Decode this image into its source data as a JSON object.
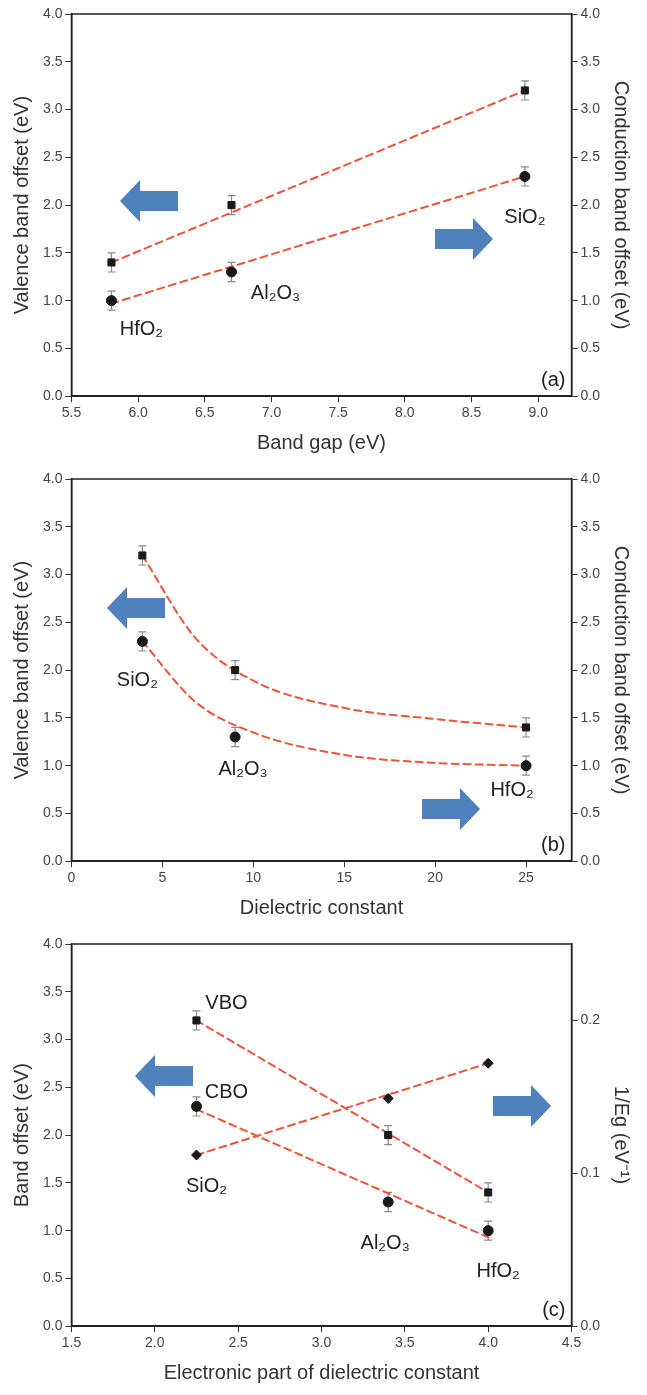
{
  "chart_data": [
    {
      "type": "scatter",
      "xlabel": "Band gap (eV)",
      "ylabel": "Valence band offset (eV)",
      "y2label": "Conduction band offset (eV)",
      "x": [
        5.8,
        6.7,
        8.9
      ],
      "series": [
        {
          "type": "scatter",
          "color": "#1a1a1a",
          "marker": "square",
          "values": [
            1.4,
            2.0,
            3.2
          ],
          "errors": [
            0.1,
            0.1,
            0.1
          ]
        },
        {
          "type": "scatter",
          "color": "#1a1a1a",
          "marker": "circle",
          "axis": "y2",
          "values": [
            1.0,
            1.3,
            2.3
          ],
          "errors": [
            0.1,
            0.1,
            0.1
          ]
        },
        {
          "type": "line",
          "color": "#f0533a",
          "marker": "none",
          "line_style": "dashed",
          "x": [
            5.8,
            8.9
          ],
          "values": [
            1.4,
            3.2
          ]
        },
        {
          "type": "line",
          "color": "#f0533a",
          "marker": "none",
          "line_style": "dashed",
          "x": [
            5.8,
            8.9
          ],
          "values": [
            0.97,
            2.3
          ]
        }
      ],
      "xlim": [
        5.5,
        9.25
      ],
      "xticks": [
        {
          "value": 5.5,
          "label": "5.5"
        },
        {
          "value": 6,
          "label": "6.0"
        },
        {
          "value": 6.5,
          "label": "6.5"
        },
        {
          "value": 7,
          "label": "7.0"
        },
        {
          "value": 7.5,
          "label": "7.5"
        },
        {
          "value": 8,
          "label": "8.0"
        },
        {
          "value": 8.5,
          "label": "8.5"
        },
        {
          "value": 9,
          "label": "9.0"
        }
      ],
      "ylim": [
        0,
        4
      ],
      "yticks": [
        {
          "value": 0,
          "label": "0.0"
        },
        {
          "value": 0.5,
          "label": "0.5"
        },
        {
          "value": 1,
          "label": "1.0"
        },
        {
          "value": 1.5,
          "label": "1.5"
        },
        {
          "value": 2,
          "label": "2.0"
        },
        {
          "value": 2.5,
          "label": "2.5"
        },
        {
          "value": 3,
          "label": "3.0"
        },
        {
          "value": 3.5,
          "label": "3.5"
        },
        {
          "value": 4,
          "label": "4.0"
        }
      ],
      "y2lim": [
        0,
        4
      ],
      "y2ticks": [
        {
          "value": 0,
          "label": "0.0"
        },
        {
          "value": 0.5,
          "label": "0.5"
        },
        {
          "value": 1,
          "label": "1.0"
        },
        {
          "value": 1.5,
          "label": "1.5"
        },
        {
          "value": 2,
          "label": "2.0"
        },
        {
          "value": 2.5,
          "label": "2.5"
        },
        {
          "value": 3,
          "label": "3.0"
        },
        {
          "value": 3.5,
          "label": "3.5"
        },
        {
          "value": 4,
          "label": "4.0"
        }
      ],
      "annotations": [
        {
          "text": "HfO₂",
          "x": 5.8,
          "y": 1.0
        },
        {
          "text": "Al₂O₃",
          "x": 6.7,
          "y": 1.3
        },
        {
          "text": "SiO₂",
          "x": 8.9,
          "y": 2.3
        },
        "(a)"
      ]
    },
    {
      "type": "scatter",
      "xlabel": "Dielectric constant",
      "ylabel": "Valence band offset (eV)",
      "y2label": "Conduction band offset (eV)",
      "x": [
        3.9,
        9,
        25
      ],
      "series": [
        {
          "type": "scatter",
          "color": "#1a1a1a",
          "marker": "square",
          "values": [
            3.2,
            2.0,
            1.4
          ],
          "errors": [
            0.1,
            0.1,
            0.1
          ]
        },
        {
          "type": "scatter",
          "color": "#1a1a1a",
          "marker": "circle",
          "axis": "y2",
          "values": [
            2.3,
            1.3,
            1.0
          ],
          "errors": [
            0.1,
            0.1,
            0.1
          ]
        },
        {
          "type": "line",
          "color": "#f0533a",
          "marker": "none",
          "line_style": "dashed",
          "x": [
            3.9,
            6.8,
            10.1,
            15.1,
            19.9,
            25
          ],
          "values": [
            3.2,
            2.34,
            1.88,
            1.6,
            1.49,
            1.4
          ]
        },
        {
          "type": "line",
          "color": "#f0533a",
          "marker": "none",
          "line_style": "dashed",
          "x": [
            3.9,
            6.8,
            10.1,
            15.1,
            19.9,
            25
          ],
          "values": [
            2.3,
            1.67,
            1.34,
            1.11,
            1.03,
            1.0
          ]
        }
      ],
      "xlim": [
        0,
        27.5
      ],
      "xticks": [
        0,
        5,
        10,
        15,
        20,
        25
      ],
      "ylim": [
        0,
        4
      ],
      "yticks": [
        {
          "value": 0,
          "label": "0.0"
        },
        {
          "value": 0.5,
          "label": "0.5"
        },
        {
          "value": 1,
          "label": "1.0"
        },
        {
          "value": 1.5,
          "label": "1.5"
        },
        {
          "value": 2,
          "label": "2.0"
        },
        {
          "value": 2.5,
          "label": "2.5"
        },
        {
          "value": 3,
          "label": "3.0"
        },
        {
          "value": 3.5,
          "label": "3.5"
        },
        {
          "value": 4,
          "label": "4.0"
        }
      ],
      "y2lim": [
        0,
        4
      ],
      "y2ticks": [
        {
          "value": 0,
          "label": "0.0"
        },
        {
          "value": 0.5,
          "label": "0.5"
        },
        {
          "value": 1,
          "label": "1.0"
        },
        {
          "value": 1.5,
          "label": "1.5"
        },
        {
          "value": 2,
          "label": "2.0"
        },
        {
          "value": 2.5,
          "label": "2.5"
        },
        {
          "value": 3,
          "label": "3.0"
        },
        {
          "value": 3.5,
          "label": "3.5"
        },
        {
          "value": 4,
          "label": "4.0"
        }
      ],
      "annotations": [
        {
          "text": "SiO₂",
          "x": 3.9,
          "y": 2.3
        },
        {
          "text": "Al₂O₃",
          "x": 9,
          "y": 1.3
        },
        {
          "text": "HfO₂",
          "x": 25,
          "y": 1.0
        },
        "(b)"
      ]
    },
    {
      "type": "scatter",
      "xlabel": "Electronic part of dielectric constant",
      "ylabel": "Band offset (eV)",
      "y2label": "1/Eg (eV⁻¹)",
      "x": [
        2.25,
        3.4,
        4.0
      ],
      "series": [
        {
          "type": "scatter",
          "color": "#1a1a1a",
          "marker": "square",
          "values": [
            3.2,
            2.0,
            1.4
          ],
          "errors": [
            0.1,
            0.1,
            0.1
          ]
        },
        {
          "type": "scatter",
          "color": "#1a1a1a",
          "marker": "circle",
          "values": [
            2.3,
            1.3,
            1.0
          ],
          "errors": [
            0.1,
            0.1,
            0.1
          ]
        },
        {
          "type": "scatter",
          "color": "#1a1a1a",
          "marker": "diamond",
          "axis": "y2",
          "values": [
            0.112,
            0.149,
            0.172
          ]
        },
        {
          "type": "line",
          "color": "#f0533a",
          "marker": "none",
          "line_style": "dashed",
          "x": [
            2.25,
            4.0
          ],
          "values": [
            3.2,
            1.4
          ]
        },
        {
          "type": "line",
          "color": "#f0533a",
          "marker": "none",
          "line_style": "dashed",
          "x": [
            2.25,
            4.0
          ],
          "values": [
            2.27,
            0.93
          ]
        },
        {
          "type": "line",
          "color": "#f0533a",
          "marker": "none",
          "line_style": "dashed",
          "axis": "y2",
          "x": [
            2.25,
            4.0
          ],
          "values": [
            0.112,
            0.172
          ]
        }
      ],
      "xlim": [
        1.5,
        4.5
      ],
      "xticks": [
        {
          "value": 1.5,
          "label": "1.5"
        },
        {
          "value": 2,
          "label": "2.0"
        },
        {
          "value": 2.5,
          "label": "2.5"
        },
        {
          "value": 3,
          "label": "3.0"
        },
        {
          "value": 3.5,
          "label": "3.5"
        },
        {
          "value": 4,
          "label": "4.0"
        },
        {
          "value": 4.5,
          "label": "4.5"
        }
      ],
      "ylim": [
        0,
        4
      ],
      "yticks": [
        {
          "value": 0,
          "label": "0.0"
        },
        {
          "value": 0.5,
          "label": "0.5"
        },
        {
          "value": 1,
          "label": "1.0"
        },
        {
          "value": 1.5,
          "label": "1.5"
        },
        {
          "value": 2,
          "label": "2.0"
        },
        {
          "value": 2.5,
          "label": "2.5"
        },
        {
          "value": 3,
          "label": "3.0"
        },
        {
          "value": 3.5,
          "label": "3.5"
        },
        {
          "value": 4,
          "label": "4.0"
        }
      ],
      "y2lim": [
        0,
        0.25
      ],
      "y2ticks": [
        {
          "value": 0,
          "label": "0.0"
        },
        {
          "value": 0.1,
          "label": "0.1"
        },
        {
          "value": 0.2,
          "label": "0.2"
        }
      ],
      "annotations": [
        {
          "text": "VBO",
          "x": 2.25,
          "y": 3.2
        },
        {
          "text": "CBO",
          "x": 2.25,
          "y": 2.3
        },
        {
          "text": "SiO₂",
          "x": 2.25,
          "y": 1.8
        },
        {
          "text": "Al₂O₃",
          "x": 3.4,
          "y": 1.3
        },
        {
          "text": "HfO₂",
          "x": 4.0,
          "y": 1.0
        },
        "(c)"
      ]
    }
  ]
}
